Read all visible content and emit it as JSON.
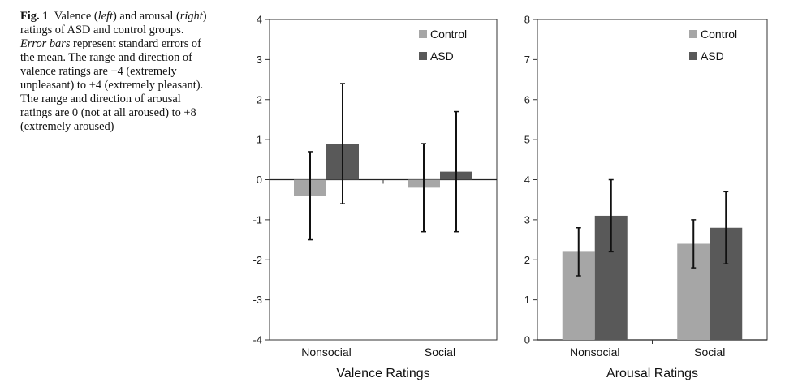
{
  "caption": {
    "fig": "Fig. 1",
    "t1": "Valence (",
    "i1": "left",
    "t2": ") and arousal (",
    "i2": "right",
    "t3": ") ratings of ASD and control groups. ",
    "i3": "Error bars",
    "t4": " represent standard errors of the mean. The range and direction of valence ratings are −4 (extremely unpleasant) to +4 (extremely pleasant). The range and direction of arousal ratings are 0 (not at all aroused) to +8 (extremely aroused)"
  },
  "colors": {
    "control": "#a6a6a6",
    "asd": "#595959"
  },
  "chart_data": [
    {
      "type": "bar",
      "xlabel": "Valence Ratings",
      "categories": [
        "Nonsocial",
        "Social"
      ],
      "ylim": [
        -4,
        4
      ],
      "yticks": [
        "4",
        "3",
        "2",
        "1",
        "0",
        "-1",
        "-2",
        "-3",
        "-4"
      ],
      "legend_placement": "top-right",
      "series": [
        {
          "name": "Control",
          "values": [
            -0.4,
            -0.2
          ],
          "error": [
            1.1,
            1.1
          ]
        },
        {
          "name": "ASD",
          "values": [
            0.9,
            0.2
          ],
          "error": [
            1.5,
            1.5
          ]
        }
      ]
    },
    {
      "type": "bar",
      "xlabel": "Arousal Ratings",
      "categories": [
        "Nonsocial",
        "Social"
      ],
      "ylim": [
        0,
        8
      ],
      "yticks": [
        "8",
        "7",
        "6",
        "5",
        "4",
        "3",
        "2",
        "1",
        "0"
      ],
      "legend_placement": "top-right",
      "series": [
        {
          "name": "Control",
          "values": [
            2.2,
            2.4
          ],
          "error": [
            0.6,
            0.6
          ]
        },
        {
          "name": "ASD",
          "values": [
            3.1,
            2.8
          ],
          "error": [
            0.9,
            0.9
          ]
        }
      ]
    }
  ]
}
